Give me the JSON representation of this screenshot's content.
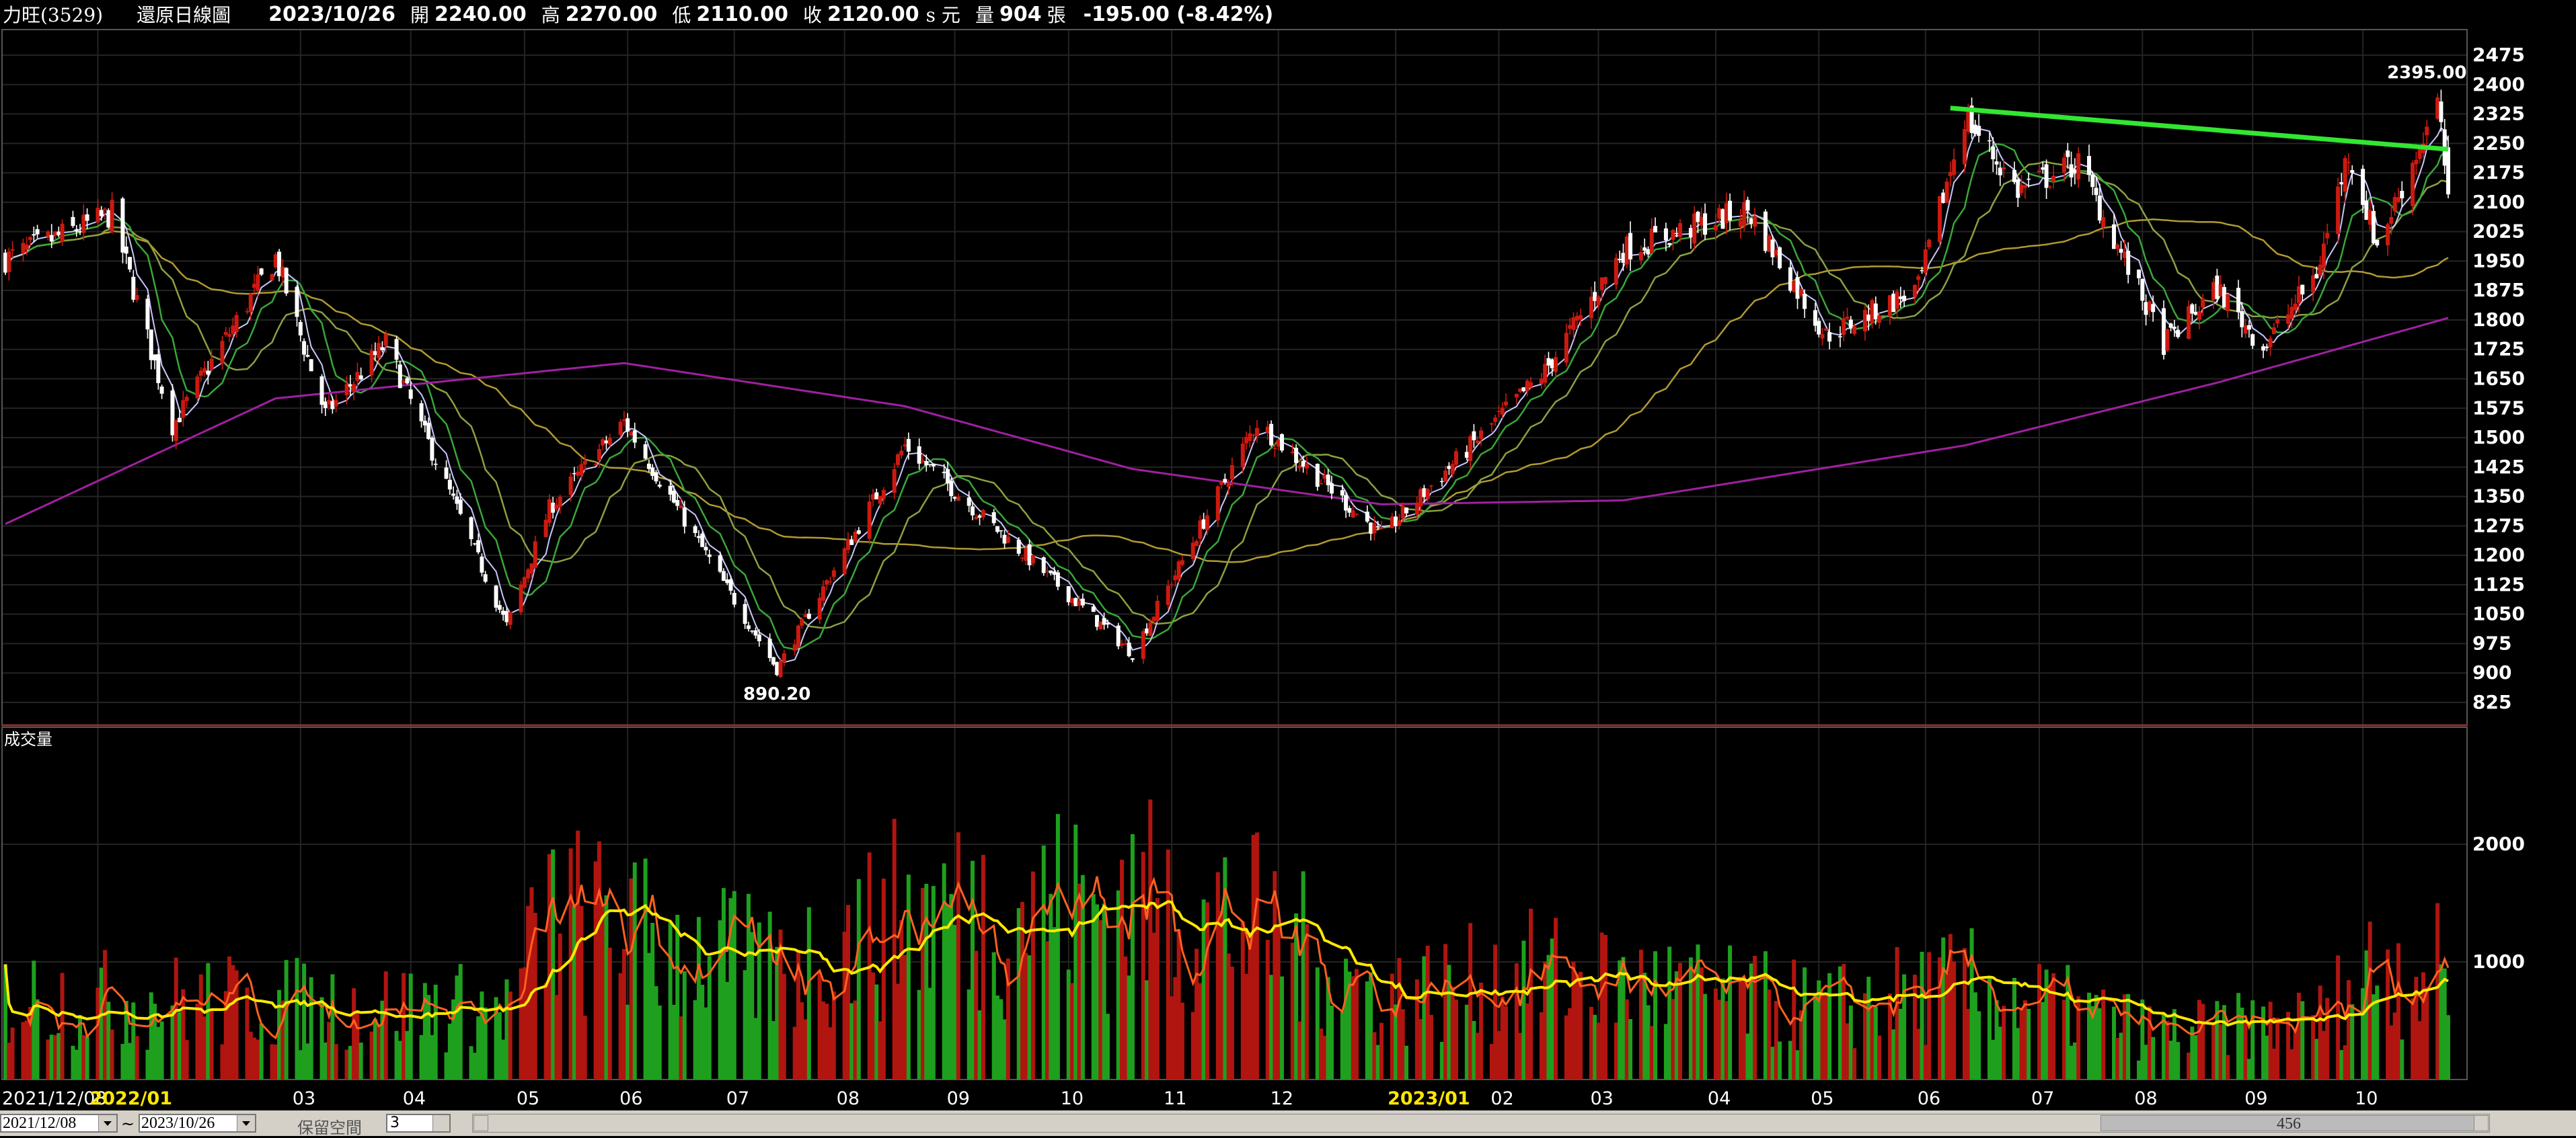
{
  "header": {
    "stock_name": "力旺(3529)",
    "chart_type": "還原日線圖",
    "date": "2023/10/26",
    "open_label": "開",
    "open": "2240.00",
    "high_label": "高",
    "high": "2270.00",
    "low_label": "低",
    "low": "2110.00",
    "close_label": "收",
    "close": "2120.00",
    "close_suffix": "s 元",
    "volume_label": "量",
    "volume": "904",
    "volume_unit": "張",
    "change": "-195.00 (-8.42%)"
  },
  "price_panel": {
    "y_ticks": [
      "2475",
      "2400",
      "2325",
      "2250",
      "2175",
      "2100",
      "2025",
      "1950",
      "1875",
      "1800",
      "1725",
      "1650",
      "1575",
      "1500",
      "1425",
      "1350",
      "1275",
      "1200",
      "1125",
      "1050",
      "975",
      "900",
      "825"
    ],
    "high_annotation": "2395.00",
    "low_annotation": "890.20"
  },
  "volume_panel": {
    "title": "成交量",
    "y_ticks": [
      "2000",
      "1000"
    ]
  },
  "x_axis": {
    "labels": [
      "2021/12/08",
      "2022/01",
      "03",
      "04",
      "05",
      "06",
      "07",
      "08",
      "09",
      "10",
      "11",
      "12",
      "2023/01",
      "02",
      "03",
      "04",
      "05",
      "06",
      "07",
      "08",
      "09",
      "10"
    ],
    "highlight": [
      "2022/01",
      "2023/01"
    ]
  },
  "controls": {
    "start_date": "2021/12/08",
    "end_date": "2023/10/26",
    "range_sep": "~",
    "keep_space_label": "保留空間",
    "keep_space_value": "3",
    "scroll_value": "456"
  },
  "colors": {
    "up": "#cc1a10",
    "down": "#ffffff",
    "vol_up": "#b0150f",
    "vol_down": "#1ea01e",
    "ma5": "#c8c8ff",
    "ma10": "#39a639",
    "ma20": "#8aa040",
    "ma60": "#b09a30",
    "ma240": "#a020a0",
    "trendline": "#32e632",
    "vol_ma_fast": "#ff6020",
    "vol_ma_slow": "#ffe800"
  },
  "chart_data": {
    "type": "candlestick",
    "title": "",
    "price_range": [
      825,
      2475
    ],
    "volume_range": [
      0,
      2500
    ],
    "key_points": [
      {
        "date": "2021/12/08",
        "close": 1955
      },
      {
        "date": "2022/01/07",
        "close": 2070
      },
      {
        "date": "2022/01/24",
        "close": 1530
      },
      {
        "date": "2022/02/22",
        "close": 1960
      },
      {
        "date": "2022/03/08",
        "close": 1560
      },
      {
        "date": "2022/03/25",
        "close": 1740
      },
      {
        "date": "2022/04/28",
        "close": 1020
      },
      {
        "date": "2022/05/10",
        "close": 1320
      },
      {
        "date": "2022/05/31",
        "close": 1540
      },
      {
        "date": "2022/07/13",
        "close": 910
      },
      {
        "date": "2022/08/18",
        "close": 1480
      },
      {
        "date": "2022/10/21",
        "close": 950
      },
      {
        "date": "2022/11/25",
        "close": 1540
      },
      {
        "date": "2022/12/30",
        "close": 1250
      },
      {
        "date": "2023/02/14",
        "close": 1670
      },
      {
        "date": "2023/03/08",
        "close": 1980
      },
      {
        "date": "2023/04/12",
        "close": 2080
      },
      {
        "date": "2023/05/04",
        "close": 1760
      },
      {
        "date": "2023/05/30",
        "close": 1880
      },
      {
        "date": "2023/06/12",
        "close": 2320
      },
      {
        "date": "2023/06/27",
        "close": 2130
      },
      {
        "date": "2023/07/14",
        "close": 2200
      },
      {
        "date": "2023/08/07",
        "close": 1740
      },
      {
        "date": "2023/08/22",
        "close": 1880
      },
      {
        "date": "2023/09/04",
        "close": 1730
      },
      {
        "date": "2023/09/19",
        "close": 1920
      },
      {
        "date": "2023/09/28",
        "close": 2230
      },
      {
        "date": "2023/10/06",
        "close": 1990
      },
      {
        "date": "2023/10/23",
        "close": 2350
      },
      {
        "date": "2023/10/26",
        "close": 2120
      }
    ],
    "ma240_points": [
      {
        "date": "2021/12/08",
        "value": 1280
      },
      {
        "date": "2022/02/22",
        "value": 1600
      },
      {
        "date": "2022/05/31",
        "value": 1690
      },
      {
        "date": "2022/08/18",
        "value": 1580
      },
      {
        "date": "2022/10/21",
        "value": 1420
      },
      {
        "date": "2022/12/30",
        "value": 1330
      },
      {
        "date": "2023/03/08",
        "value": 1340
      },
      {
        "date": "2023/06/12",
        "value": 1480
      },
      {
        "date": "2023/08/22",
        "value": 1640
      },
      {
        "date": "2023/10/26",
        "value": 1805
      }
    ],
    "trendline": [
      {
        "date": "2023/06/08",
        "value": 2340
      },
      {
        "date": "2023/10/26",
        "value": 2235
      }
    ],
    "volume_level": [
      {
        "date": "2021/12/08",
        "value": 700
      },
      {
        "date": "2022/04/28",
        "value": 600
      },
      {
        "date": "2022/05/10",
        "value": 1400
      },
      {
        "date": "2022/07/13",
        "value": 900
      },
      {
        "date": "2022/08/18",
        "value": 1400
      },
      {
        "date": "2022/10/21",
        "value": 1500
      },
      {
        "date": "2022/11/25",
        "value": 1300
      },
      {
        "date": "2022/12/30",
        "value": 700
      },
      {
        "date": "2023/02/14",
        "value": 900
      },
      {
        "date": "2023/05/04",
        "value": 600
      },
      {
        "date": "2023/06/12",
        "value": 800
      },
      {
        "date": "2023/08/07",
        "value": 400
      },
      {
        "date": "2023/09/19",
        "value": 500
      },
      {
        "date": "2023/10/06",
        "value": 1000
      },
      {
        "date": "2023/10/26",
        "value": 900
      }
    ]
  }
}
